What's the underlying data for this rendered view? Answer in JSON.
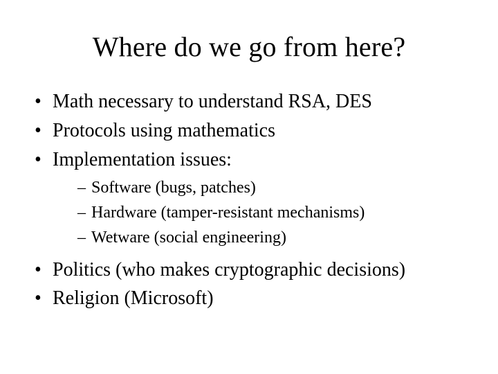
{
  "slide": {
    "title": "Where do we go from here?",
    "bullets": [
      {
        "text": "Math necessary to understand RSA, DES"
      },
      {
        "text": "Protocols using mathematics"
      },
      {
        "text": "Implementation issues:",
        "sub": [
          "Software (bugs, patches)",
          "Hardware (tamper-resistant mechanisms)",
          "Wetware (social engineering)"
        ]
      },
      {
        "text": "Politics (who makes cryptographic decisions)"
      },
      {
        "text": "Religion (Microsoft)"
      }
    ],
    "colors": {
      "background": "#ffffff",
      "text": "#000000"
    },
    "typography": {
      "font_family": "Times New Roman",
      "title_fontsize_pt": 40,
      "body_fontsize_pt": 28,
      "sub_fontsize_pt": 24
    }
  }
}
